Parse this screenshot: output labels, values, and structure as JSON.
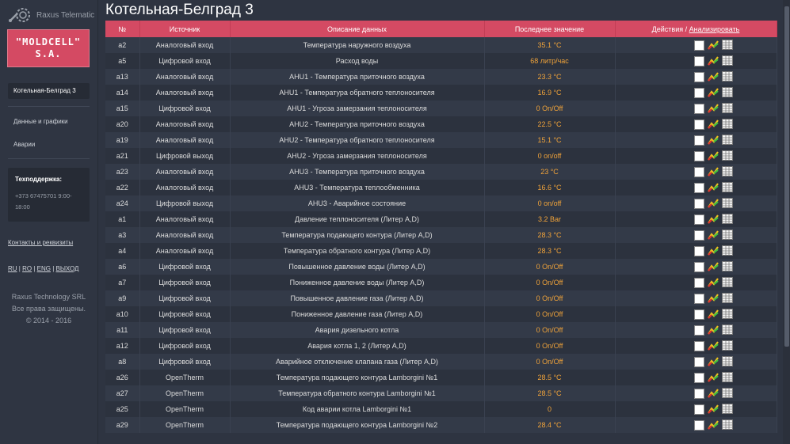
{
  "sidebar": {
    "logo_text": "Raxus Telematic",
    "brand_line1": "\"MOLDCELL\"",
    "brand_line2": "S.A.",
    "active_item": "Котельная-Белград 3",
    "nav": [
      "Данные и графики",
      "Аварии"
    ],
    "support_title": "Техподдержка:",
    "support_phone": "+373 67475701 9:00-",
    "support_hours": "18:00",
    "contacts_link": "Контакты и реквизиты",
    "langs": [
      "RU",
      "RO",
      "ENG",
      "ВЫХОД"
    ],
    "copyright": [
      "Raxus Technology SRL",
      "Все права защищены.",
      "© 2014 - 2016"
    ]
  },
  "page_title": "Котельная-Белград 3",
  "table": {
    "headers": {
      "num": "№",
      "source": "Источник",
      "desc": "Описание данных",
      "last": "Последнее значение",
      "actions": "Действия /",
      "analyze": "Анализировать"
    },
    "rows": [
      {
        "num": "a2",
        "source": "Аналоговый вход",
        "desc": "Температура наружного воздуха",
        "value": "35.1 °C"
      },
      {
        "num": "a5",
        "source": "Цифровой вход",
        "desc": "Расход воды",
        "value": "68 литр/час"
      },
      {
        "num": "a13",
        "source": "Аналоговый вход",
        "desc": "AHU1 - Температура приточного воздуха",
        "value": "23.3 °C"
      },
      {
        "num": "a14",
        "source": "Аналоговый вход",
        "desc": "AHU1 - Температура обратного теплоносителя",
        "value": "16.9 °C"
      },
      {
        "num": "a15",
        "source": "Цифровой вход",
        "desc": "AHU1 - Угроза замерзания теплоносителя",
        "value": "0 On/Off"
      },
      {
        "num": "a20",
        "source": "Аналоговый вход",
        "desc": "AHU2 - Температура приточного воздуха",
        "value": "22.5 °C"
      },
      {
        "num": "a19",
        "source": "Аналоговый вход",
        "desc": "AHU2 - Температура обратного теплоносителя",
        "value": "15.1 °C"
      },
      {
        "num": "a21",
        "source": "Цифровой выход",
        "desc": "AHU2 - Угроза замерзания теплоносителя",
        "value": "0 on/off"
      },
      {
        "num": "a23",
        "source": "Аналоговый вход",
        "desc": "AHU3 - Температура приточного воздуха",
        "value": "23 °C"
      },
      {
        "num": "a22",
        "source": "Аналоговый вход",
        "desc": "AHU3 - Температура теплообменника",
        "value": "16.6 °C"
      },
      {
        "num": "a24",
        "source": "Цифровой выход",
        "desc": "AHU3 - Аварийное состояние",
        "value": "0 on/off"
      },
      {
        "num": "a1",
        "source": "Аналоговый вход",
        "desc": "Давление теплоносителя (Литер A,D)",
        "value": "3.2 Bar"
      },
      {
        "num": "a3",
        "source": "Аналоговый вход",
        "desc": "Температура подающего контура (Литер A,D)",
        "value": "28.3 °C"
      },
      {
        "num": "a4",
        "source": "Аналоговый вход",
        "desc": "Температура обратного контура (Литер A,D)",
        "value": "28.3 °C"
      },
      {
        "num": "a6",
        "source": "Цифровой вход",
        "desc": "Повышенное давление воды (Литер A,D)",
        "value": "0 On/Off"
      },
      {
        "num": "a7",
        "source": "Цифровой вход",
        "desc": "Пониженное давление воды (Литер A,D)",
        "value": "0 On/Off"
      },
      {
        "num": "a9",
        "source": "Цифровой вход",
        "desc": "Повышенное давление газа (Литер A,D)",
        "value": "0 On/Off"
      },
      {
        "num": "a10",
        "source": "Цифровой вход",
        "desc": "Пониженное давление газа (Литер A,D)",
        "value": "0 On/Off"
      },
      {
        "num": "a11",
        "source": "Цифровой вход",
        "desc": "Авария дизельного котла",
        "value": "0 On/Off"
      },
      {
        "num": "a12",
        "source": "Цифровой вход",
        "desc": "Авария котла 1, 2 (Литер A,D)",
        "value": "0 On/Off"
      },
      {
        "num": "a8",
        "source": "Цифровой вход",
        "desc": "Аварийное отключение клапана газа (Литер A,D)",
        "value": "0 On/Off"
      },
      {
        "num": "a26",
        "source": "OpenTherm",
        "desc": "Температура подающего контура Lamborgini №1",
        "value": "28.5 °C"
      },
      {
        "num": "a27",
        "source": "OpenTherm",
        "desc": "Температура обратного контура Lamborgini №1",
        "value": "28.5 °C"
      },
      {
        "num": "a25",
        "source": "OpenTherm",
        "desc": "Код аварии котла Lamborgini №1",
        "value": "0"
      },
      {
        "num": "a29",
        "source": "OpenTherm",
        "desc": "Температура подающего контура Lamborgini №2",
        "value": "28.4 °C"
      }
    ]
  }
}
